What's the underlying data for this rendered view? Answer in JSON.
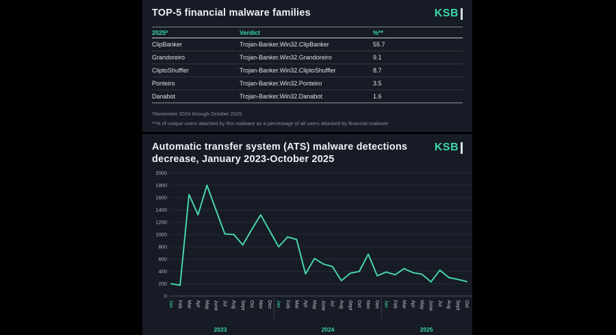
{
  "page": {
    "background": "#000000",
    "panel_bg": "#161b25",
    "accent": "#3bd9a6"
  },
  "top_panel": {
    "title": "TOP-5 financial malware families",
    "logo_text": "KSB",
    "table": {
      "headers": [
        "2025*",
        "Verdict",
        "%**"
      ],
      "rows": [
        {
          "family": "ClipBanker",
          "verdict": "Trojan-Banker.Win32.ClipBanker",
          "percent": "55.7"
        },
        {
          "family": "Grandoreiro",
          "verdict": "Trojan-Banker.Win32.Grandoreiro",
          "percent": "9.1"
        },
        {
          "family": "CliptoShuffler",
          "verdict": "Trojan-Banker.Win32.CliptoShuffler",
          "percent": "8.7"
        },
        {
          "family": "Ponteiro",
          "verdict": "Trojan-Banker.Win32.Ponteiro",
          "percent": "3.5"
        },
        {
          "family": "Danabot",
          "verdict": "Trojan-Banker.Win32.Danabot",
          "percent": "1.6"
        }
      ]
    },
    "footnotes": [
      "*November 2024 through October 2025",
      "**% of unique users attacked by this malware as a percentage of all users attacked by financial malware"
    ]
  },
  "bottom_panel": {
    "title_line1": "Automatic transfer system (ATS) malware detections",
    "title_line2": "decrease, January 2023-October 2025",
    "logo_text": "KSB"
  },
  "chart_data": {
    "type": "line",
    "title": "Automatic transfer system (ATS) malware detections decrease, January 2023-October 2025",
    "categories": [
      "Jan",
      "Feb",
      "Mar",
      "Apr",
      "May",
      "June",
      "Jul",
      "Aug",
      "Sept",
      "Oct",
      "Nov",
      "Dec",
      "Jan",
      "Feb",
      "Mar",
      "Apr",
      "May",
      "June",
      "Jul",
      "Aug",
      "Sept",
      "Oct",
      "Nov",
      "Dec",
      "Jan",
      "Feb",
      "Mar",
      "Apr",
      "May",
      "June",
      "Jul",
      "Aug",
      "Sept",
      "Oct"
    ],
    "year_groups": [
      {
        "label": "2023",
        "start": 0,
        "count": 12
      },
      {
        "label": "2024",
        "start": 12,
        "count": 12
      },
      {
        "label": "2025",
        "start": 24,
        "count": 10
      }
    ],
    "values": [
      200,
      175,
      1650,
      1320,
      1800,
      1400,
      1010,
      1000,
      830,
      1080,
      1320,
      1060,
      800,
      960,
      920,
      360,
      610,
      520,
      480,
      250,
      370,
      400,
      680,
      330,
      390,
      345,
      445,
      380,
      355,
      230,
      420,
      300,
      270,
      235
    ],
    "ylim": [
      0,
      2000
    ],
    "ytick_step": 200,
    "grid": true,
    "legend": "none",
    "line_color": "#49d6ac",
    "highlight_month_label": "Jan",
    "axis_label_color": "#c3c8d1",
    "ytick_label_color": "#b2b8c2"
  }
}
